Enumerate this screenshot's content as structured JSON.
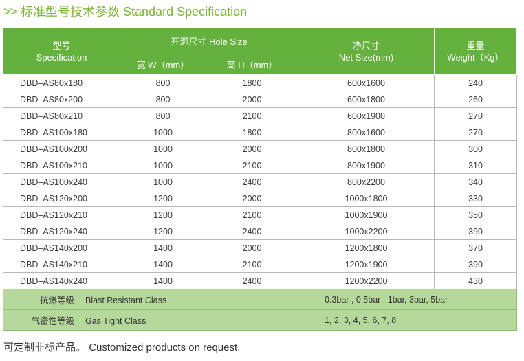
{
  "title": {
    "arrows": ">>",
    "text": "标准型号技术参数 Standard Specification"
  },
  "headers": {
    "model_cn": "型号",
    "model_en": "Specification",
    "hole_size": "开洞尺寸 Hole Size",
    "width": "宽 W（mm）",
    "height": "高 H（mm）",
    "net_cn": "净尺寸",
    "net_en": "Net Size(mm)",
    "weight_cn": "重量",
    "weight_en": "Weight（Kg）"
  },
  "rows": [
    {
      "model": "DBD–AS80x180",
      "w": "800",
      "h": "1800",
      "net": "600x1600",
      "weight": "240"
    },
    {
      "model": "DBD–AS80x200",
      "w": "800",
      "h": "2000",
      "net": "600x1800",
      "weight": "260"
    },
    {
      "model": "DBD–AS80x210",
      "w": "800",
      "h": "2100",
      "net": "600x1900",
      "weight": "270"
    },
    {
      "model": "DBD–AS100x180",
      "w": "1000",
      "h": "1800",
      "net": "800x1600",
      "weight": "270"
    },
    {
      "model": "DBD–AS100x200",
      "w": "1000",
      "h": "2000",
      "net": "800x1800",
      "weight": "300"
    },
    {
      "model": "DBD–AS100x210",
      "w": "1000",
      "h": "2100",
      "net": "800x1900",
      "weight": "310"
    },
    {
      "model": "DBD–AS100x240",
      "w": "1000",
      "h": "2400",
      "net": "800x2200",
      "weight": "340"
    },
    {
      "model": "DBD–AS120x200",
      "w": "1200",
      "h": "2000",
      "net": "1000x1800",
      "weight": "330"
    },
    {
      "model": "DBD–AS120x210",
      "w": "1200",
      "h": "2100",
      "net": "1000x1900",
      "weight": "350"
    },
    {
      "model": "DBD–AS120x240",
      "w": "1200",
      "h": "2400",
      "net": "1000x2200",
      "weight": "390"
    },
    {
      "model": "DBD–AS140x200",
      "w": "1400",
      "h": "2000",
      "net": "1200x1800",
      "weight": "370"
    },
    {
      "model": "DBD–AS140x210",
      "w": "1400",
      "h": "2100",
      "net": "1200x1900",
      "weight": "390"
    },
    {
      "model": "DBD–AS140x240",
      "w": "1400",
      "h": "2400",
      "net": "1200x2200",
      "weight": "430"
    }
  ],
  "classes": [
    {
      "label_cn": "抗爆等级",
      "label_en": "Blast Resistant Class",
      "value": "0.3bar , 0.5bar , 1bar, 3bar, 5bar"
    },
    {
      "label_cn": "气密性等级",
      "label_en": "Gas Tight Class",
      "value": "1, 2, 3, 4, 5, 6, 7, 8"
    }
  ],
  "colors": {
    "title": "#78b82a",
    "header_bg": "#64b13d",
    "footer_rows_bg": "#b4d99a"
  },
  "footer": {
    "cn": "可定制非标产品。",
    "en": "Customized products on request."
  }
}
